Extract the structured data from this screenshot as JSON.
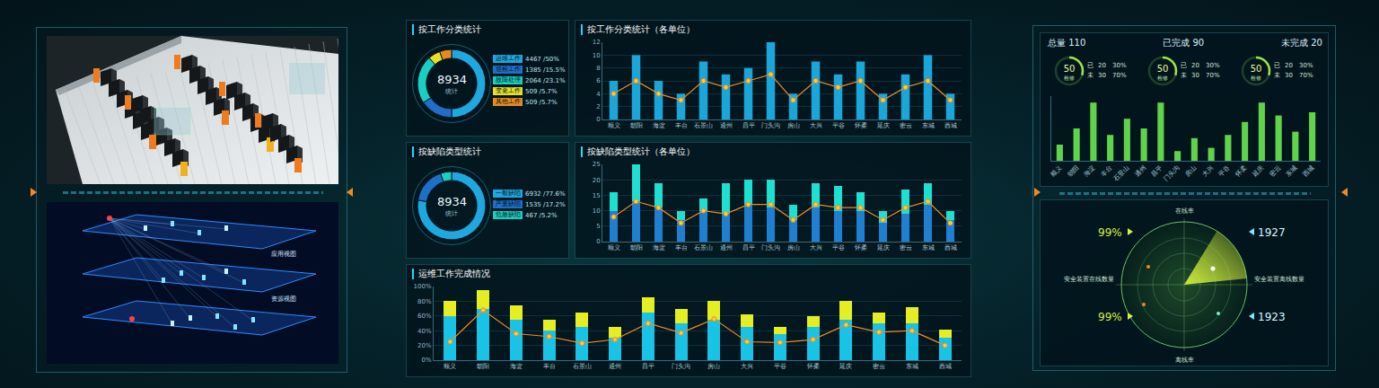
{
  "left": {
    "diagram_labels": [
      "应用视图",
      "资源视图"
    ]
  },
  "chart_data": [
    {
      "type": "pie",
      "title": "按工作分类统计",
      "categories": [
        "运维工作",
        "巡检工作",
        "故障处理",
        "变更工作",
        "其他工作"
      ],
      "values": [
        4467,
        1385,
        2064,
        509,
        509
      ],
      "value_labels": [
        "4467 /50%",
        "1385 /15.5%",
        "2064 /23.1%",
        "509 /5.7%",
        "509 /5.7%"
      ],
      "colors": [
        "#1fa8e0",
        "#1f6fc8",
        "#19d0c0",
        "#e8e020",
        "#e88a20"
      ],
      "center_value": 8934,
      "center_label": "统计"
    },
    {
      "type": "bar",
      "title": "按工作分类统计（各单位）",
      "categories": [
        "顺义",
        "朝阳",
        "海淀",
        "丰台",
        "石景山",
        "通州",
        "昌平",
        "门头沟",
        "房山",
        "大兴",
        "平谷",
        "怀柔",
        "延庆",
        "密云",
        "东城",
        "西城"
      ],
      "series": [
        {
          "color": "#1aa6d8",
          "values": [
            6,
            10,
            6,
            4,
            9,
            7,
            8,
            12,
            4,
            9,
            7,
            9,
            4,
            7,
            10,
            4
          ]
        },
        {
          "type": "line",
          "color": "#f08a24",
          "marker": "circle",
          "values": [
            4,
            6,
            4,
            3,
            6,
            5,
            6,
            7,
            3,
            6,
            5,
            6,
            3,
            5,
            6,
            3
          ]
        }
      ],
      "ylim": [
        0,
        12
      ],
      "yticks": [
        0,
        2,
        4,
        6,
        8,
        10,
        12
      ],
      "grid": true
    },
    {
      "type": "pie",
      "title": "按缺陷类型统计",
      "categories": [
        "一般缺陷",
        "严重缺陷",
        "危急缺陷"
      ],
      "values": [
        6932,
        1535,
        467
      ],
      "value_labels": [
        "6932 /77.6%",
        "1535 /17.2%",
        "467 /5.2%"
      ],
      "colors": [
        "#1fa8e0",
        "#1f6fc8",
        "#19d0c0"
      ],
      "center_value": 8934,
      "center_label": "统计"
    },
    {
      "type": "bar",
      "title": "按缺陷类型统计（各单位）",
      "categories": [
        "顺义",
        "朝阳",
        "海淀",
        "丰台",
        "石景山",
        "通州",
        "昌平",
        "门头沟",
        "房山",
        "大兴",
        "平谷",
        "怀柔",
        "延庆",
        "密云",
        "东城",
        "西城"
      ],
      "stacked": true,
      "series": [
        {
          "color": "#1f7fd0",
          "values": [
            10,
            13,
            11,
            7,
            10,
            9,
            12,
            11,
            7,
            11,
            10,
            10,
            6,
            9,
            12,
            7
          ]
        },
        {
          "color": "#1de0d0",
          "values": [
            6,
            12,
            8,
            3,
            4,
            10,
            8,
            9,
            5,
            8,
            8,
            6,
            4,
            8,
            7,
            3
          ]
        },
        {
          "type": "line",
          "color": "#f08a24",
          "marker": "circle",
          "values": [
            8,
            13,
            11,
            6,
            10,
            9,
            12,
            12,
            7,
            12,
            11,
            11,
            7,
            11,
            13,
            6
          ]
        }
      ],
      "ylim": [
        0,
        25
      ],
      "yticks": [
        0,
        5,
        10,
        15,
        20,
        25
      ],
      "grid": true
    },
    {
      "type": "bar",
      "title": "运维工作完成情况",
      "categories": [
        "顺义",
        "朝阳",
        "海淀",
        "丰台",
        "石景山",
        "通州",
        "昌平",
        "门头沟",
        "房山",
        "大兴",
        "平谷",
        "怀柔",
        "延庆",
        "密云",
        "东城",
        "西城"
      ],
      "stacked": true,
      "series": [
        {
          "color": "#19c3e6",
          "values": [
            60,
            70,
            55,
            40,
            45,
            30,
            65,
            50,
            55,
            45,
            35,
            45,
            55,
            50,
            50,
            30
          ]
        },
        {
          "color": "#e4ee22",
          "values": [
            20,
            25,
            20,
            15,
            20,
            15,
            20,
            20,
            25,
            17,
            10,
            15,
            25,
            15,
            22,
            12
          ]
        },
        {
          "type": "line",
          "color": "#f08a24",
          "marker": "circle",
          "values": [
            25,
            68,
            36,
            32,
            23,
            28,
            50,
            37,
            56,
            25,
            24,
            28,
            48,
            38,
            40,
            20
          ]
        }
      ],
      "ylim": [
        0,
        100
      ],
      "yticks": [
        {
          "value": 0,
          "label": "0%"
        },
        {
          "value": 20,
          "label": "20%"
        },
        {
          "value": 40,
          "label": "40%"
        },
        {
          "value": 60,
          "label": "60%"
        },
        {
          "value": 80,
          "label": "80%"
        },
        {
          "value": 100,
          "label": "100%"
        }
      ],
      "grid": true
    },
    {
      "type": "bar",
      "categories": [
        "顺义",
        "朝阳",
        "海淀",
        "丰台",
        "石景山",
        "通州",
        "昌平",
        "门头沟",
        "房山",
        "大兴",
        "平谷",
        "怀柔",
        "延庆",
        "密云",
        "东城",
        "西城"
      ],
      "series": [
        {
          "color": "#5fd34a",
          "values": [
            5,
            10,
            18,
            8,
            13,
            10,
            18,
            3,
            7,
            4,
            8,
            12,
            18,
            14,
            9,
            15
          ]
        }
      ],
      "ylim": [
        0,
        20
      ],
      "tick_labels": "x",
      "grid": false
    }
  ],
  "right": {
    "summary": [
      {
        "label": "总量",
        "value": 110
      },
      {
        "label": "已完成",
        "value": 90
      },
      {
        "label": "未完成",
        "value": 20
      }
    ],
    "gauges": [
      {
        "value": 50,
        "caption": "检修",
        "rows": [
          {
            "label": "已",
            "count": 20,
            "percent": 30,
            "percent_label": "30%"
          },
          {
            "label": "未",
            "count": 30,
            "percent": 70,
            "percent_label": "70%"
          }
        ]
      },
      {
        "value": 50,
        "caption": "检修",
        "rows": [
          {
            "label": "已",
            "count": 20,
            "percent": 30,
            "percent_label": "30%"
          },
          {
            "label": "未",
            "count": 30,
            "percent": 70,
            "percent_label": "70%"
          }
        ]
      },
      {
        "value": 50,
        "caption": "检修",
        "rows": [
          {
            "label": "已",
            "count": 20,
            "percent": 30,
            "percent_label": "30%"
          },
          {
            "label": "未",
            "count": 30,
            "percent": 70,
            "percent_label": "70%"
          }
        ]
      }
    ],
    "radar": {
      "top_label": "在线率",
      "bottom_label": "离线率",
      "left_label": "安全装置在线数量",
      "right_label": "安全装置离线数量",
      "left_values": [
        {
          "value": 99,
          "label": "99%"
        },
        {
          "value": 99,
          "label": "99%"
        }
      ],
      "right_values": [
        1927,
        1923
      ]
    }
  }
}
